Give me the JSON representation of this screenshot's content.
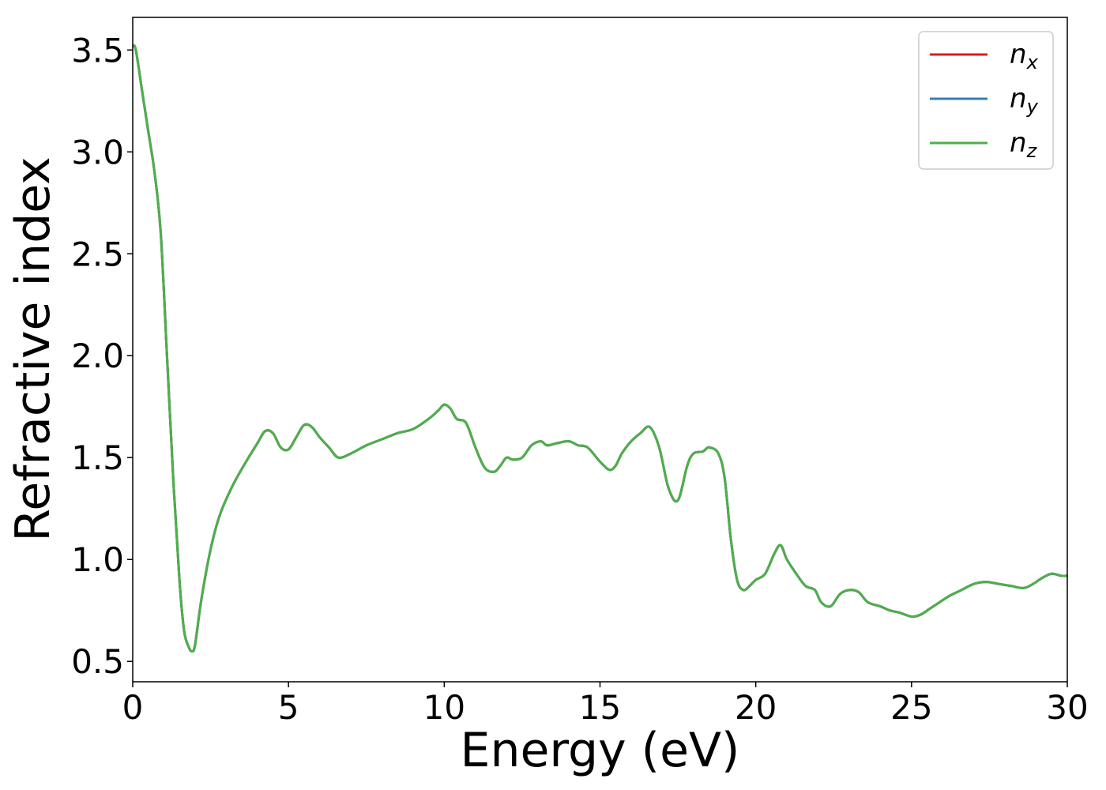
{
  "chart_data": {
    "type": "line",
    "xlabel": "Energy (eV)",
    "ylabel": "Refractive index",
    "xlim": [
      0,
      30
    ],
    "ylim": [
      0.4,
      3.66
    ],
    "xticks": [
      0,
      5,
      10,
      15,
      20,
      25,
      30
    ],
    "yticks": [
      0.5,
      1.0,
      1.5,
      2.0,
      2.5,
      3.0,
      3.5
    ],
    "xtick_labels": [
      "0",
      "5",
      "10",
      "15",
      "20",
      "25",
      "30"
    ],
    "ytick_labels": [
      "0.5",
      "1.0",
      "1.5",
      "2.0",
      "2.5",
      "3.0",
      "3.5"
    ],
    "grid": false,
    "legend": {
      "position": "top-right",
      "entries": [
        {
          "base": "n",
          "sub": "x",
          "color": "#e41a1c"
        },
        {
          "base": "n",
          "sub": "y",
          "color": "#377eb8"
        },
        {
          "base": "n",
          "sub": "z",
          "color": "#4daf4a"
        }
      ]
    },
    "x": [
      0,
      0.1,
      0.3,
      0.5,
      0.7,
      0.9,
      1.1,
      1.3,
      1.5,
      1.65,
      1.8,
      1.9,
      2.0,
      2.2,
      2.5,
      2.8,
      3.2,
      3.6,
      4.0,
      4.25,
      4.5,
      4.75,
      5.0,
      5.25,
      5.5,
      5.75,
      6.0,
      6.3,
      6.6,
      7.0,
      7.5,
      8.0,
      8.5,
      9.0,
      9.5,
      9.8,
      10.0,
      10.2,
      10.4,
      10.7,
      11.0,
      11.3,
      11.6,
      11.8,
      12.0,
      12.2,
      12.5,
      12.8,
      13.1,
      13.3,
      13.6,
      14.0,
      14.3,
      14.6,
      15.0,
      15.3,
      15.5,
      15.7,
      16.0,
      16.3,
      16.6,
      16.9,
      17.2,
      17.5,
      17.8,
      18.0,
      18.3,
      18.5,
      18.8,
      19.0,
      19.2,
      19.4,
      19.6,
      19.8,
      20.0,
      20.3,
      20.6,
      20.8,
      21.0,
      21.3,
      21.6,
      21.9,
      22.1,
      22.4,
      22.7,
      23.0,
      23.3,
      23.6,
      24.0,
      24.3,
      24.6,
      25.0,
      25.3,
      25.6,
      25.9,
      26.2,
      26.6,
      27.0,
      27.4,
      27.8,
      28.2,
      28.6,
      28.9,
      29.2,
      29.5,
      29.8,
      30.0
    ],
    "series": [
      {
        "name": "n_x",
        "color": "#e41a1c",
        "values": [
          3.52,
          3.5,
          3.3,
          3.1,
          2.9,
          2.6,
          2.0,
          1.4,
          0.9,
          0.65,
          0.57,
          0.55,
          0.58,
          0.8,
          1.05,
          1.22,
          1.36,
          1.47,
          1.57,
          1.63,
          1.62,
          1.55,
          1.54,
          1.6,
          1.66,
          1.65,
          1.6,
          1.55,
          1.5,
          1.52,
          1.56,
          1.59,
          1.62,
          1.64,
          1.69,
          1.73,
          1.76,
          1.74,
          1.69,
          1.67,
          1.55,
          1.45,
          1.43,
          1.46,
          1.5,
          1.49,
          1.5,
          1.56,
          1.58,
          1.56,
          1.57,
          1.58,
          1.56,
          1.55,
          1.48,
          1.44,
          1.46,
          1.52,
          1.58,
          1.62,
          1.65,
          1.55,
          1.35,
          1.29,
          1.46,
          1.52,
          1.53,
          1.55,
          1.52,
          1.4,
          1.1,
          0.9,
          0.85,
          0.87,
          0.9,
          0.93,
          1.03,
          1.07,
          1.0,
          0.93,
          0.87,
          0.85,
          0.79,
          0.77,
          0.83,
          0.85,
          0.84,
          0.79,
          0.77,
          0.75,
          0.74,
          0.72,
          0.73,
          0.76,
          0.79,
          0.82,
          0.85,
          0.88,
          0.89,
          0.88,
          0.87,
          0.86,
          0.88,
          0.91,
          0.93,
          0.92,
          0.92
        ]
      },
      {
        "name": "n_y",
        "color": "#377eb8",
        "values": [
          3.52,
          3.5,
          3.3,
          3.1,
          2.9,
          2.6,
          2.0,
          1.4,
          0.9,
          0.65,
          0.57,
          0.55,
          0.58,
          0.8,
          1.05,
          1.22,
          1.36,
          1.47,
          1.57,
          1.63,
          1.62,
          1.55,
          1.54,
          1.6,
          1.66,
          1.65,
          1.6,
          1.55,
          1.5,
          1.52,
          1.56,
          1.59,
          1.62,
          1.64,
          1.69,
          1.73,
          1.76,
          1.74,
          1.69,
          1.67,
          1.55,
          1.45,
          1.43,
          1.46,
          1.5,
          1.49,
          1.5,
          1.56,
          1.58,
          1.56,
          1.57,
          1.58,
          1.56,
          1.55,
          1.48,
          1.44,
          1.46,
          1.52,
          1.58,
          1.62,
          1.65,
          1.55,
          1.35,
          1.29,
          1.46,
          1.52,
          1.53,
          1.55,
          1.52,
          1.4,
          1.1,
          0.9,
          0.85,
          0.87,
          0.9,
          0.93,
          1.03,
          1.07,
          1.0,
          0.93,
          0.87,
          0.85,
          0.79,
          0.77,
          0.83,
          0.85,
          0.84,
          0.79,
          0.77,
          0.75,
          0.74,
          0.72,
          0.73,
          0.76,
          0.79,
          0.82,
          0.85,
          0.88,
          0.89,
          0.88,
          0.87,
          0.86,
          0.88,
          0.91,
          0.93,
          0.92,
          0.92
        ]
      },
      {
        "name": "n_z",
        "color": "#4daf4a",
        "values": [
          3.52,
          3.5,
          3.3,
          3.1,
          2.9,
          2.6,
          2.0,
          1.4,
          0.9,
          0.65,
          0.57,
          0.55,
          0.58,
          0.8,
          1.05,
          1.22,
          1.36,
          1.47,
          1.57,
          1.63,
          1.62,
          1.55,
          1.54,
          1.6,
          1.66,
          1.65,
          1.6,
          1.55,
          1.5,
          1.52,
          1.56,
          1.59,
          1.62,
          1.64,
          1.69,
          1.73,
          1.76,
          1.74,
          1.69,
          1.67,
          1.55,
          1.45,
          1.43,
          1.46,
          1.5,
          1.49,
          1.5,
          1.56,
          1.58,
          1.56,
          1.57,
          1.58,
          1.56,
          1.55,
          1.48,
          1.44,
          1.46,
          1.52,
          1.58,
          1.62,
          1.65,
          1.55,
          1.35,
          1.29,
          1.46,
          1.52,
          1.53,
          1.55,
          1.52,
          1.4,
          1.1,
          0.9,
          0.85,
          0.87,
          0.9,
          0.93,
          1.03,
          1.07,
          1.0,
          0.93,
          0.87,
          0.85,
          0.79,
          0.77,
          0.83,
          0.85,
          0.84,
          0.79,
          0.77,
          0.75,
          0.74,
          0.72,
          0.73,
          0.76,
          0.79,
          0.82,
          0.85,
          0.88,
          0.89,
          0.88,
          0.87,
          0.86,
          0.88,
          0.91,
          0.93,
          0.92,
          0.92
        ]
      }
    ]
  }
}
